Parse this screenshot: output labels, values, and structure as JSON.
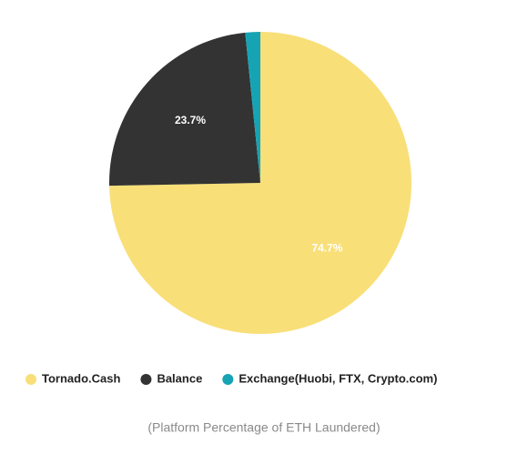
{
  "chart_data": {
    "type": "pie",
    "categories": [
      "Tornado.Cash",
      "Balance",
      "Exchange(Huobi, FTX, Crypto.com)"
    ],
    "values": [
      74.7,
      23.7,
      1.6
    ],
    "value_labels": [
      "74.7%",
      "23.7%",
      null
    ],
    "colors": [
      "#f8df78",
      "#333333",
      "#16a4b4"
    ],
    "legend": "bottom",
    "caption": "(Platform Percentage of ETH Laundered)"
  }
}
